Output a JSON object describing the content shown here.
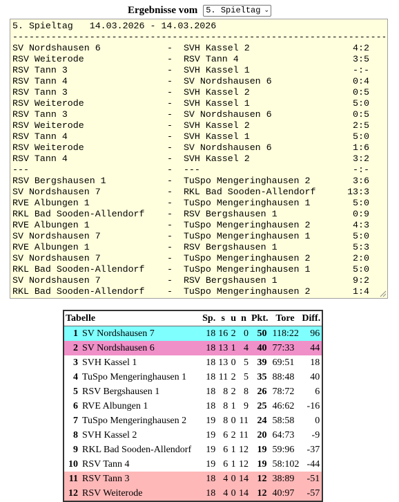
{
  "header": {
    "label": "Ergebnisse vom",
    "select_value": "5. Spieltag"
  },
  "results": {
    "title": "5. Spieltag   14.03.2026 - 14.03.2026",
    "separator": "------------------------------------------------------------------------",
    "matches": [
      {
        "home": "SV Nordshausen 6",
        "sep": "-",
        "away": "SVH Kassel 2",
        "score": "4:2"
      },
      {
        "home": "RSV Weiterode",
        "sep": "-",
        "away": "RSV Tann 4",
        "score": "3:5"
      },
      {
        "home": "RSV Tann 3",
        "sep": "-",
        "away": "SVH Kassel 1",
        "score": "-:-"
      },
      {
        "home": "RSV Tann 4",
        "sep": "-",
        "away": "SV Nordshausen 6",
        "score": "0:4"
      },
      {
        "home": "RSV Tann 3",
        "sep": "-",
        "away": "SVH Kassel 2",
        "score": "0:5"
      },
      {
        "home": "RSV Weiterode",
        "sep": "-",
        "away": "SVH Kassel 1",
        "score": "5:0"
      },
      {
        "home": "RSV Tann 3",
        "sep": "-",
        "away": "SV Nordshausen 6",
        "score": "0:5"
      },
      {
        "home": "RSV Weiterode",
        "sep": "-",
        "away": "SVH Kassel 2",
        "score": "2:5"
      },
      {
        "home": "RSV Tann 4",
        "sep": "-",
        "away": "SVH Kassel 1",
        "score": "5:0"
      },
      {
        "home": "RSV Weiterode",
        "sep": "-",
        "away": "SV Nordshausen 6",
        "score": "1:6"
      },
      {
        "home": "RSV Tann 4",
        "sep": "-",
        "away": "SVH Kassel 2",
        "score": "3:2"
      },
      {
        "home": "---",
        "sep": "-",
        "away": "---",
        "score": "-:-"
      },
      {
        "home": "RSV Bergshausen 1",
        "sep": "-",
        "away": "TuSpo Mengeringhausen 2",
        "score": "3:6"
      },
      {
        "home": "SV Nordshausen 7",
        "sep": "-",
        "away": "RKL Bad Sooden-Allendorf",
        "score": "13:3"
      },
      {
        "home": "RVE Albungen 1",
        "sep": "-",
        "away": "TuSpo Mengeringhausen 1",
        "score": "5:0"
      },
      {
        "home": "RKL Bad Sooden-Allendorf",
        "sep": "-",
        "away": "RSV Bergshausen 1",
        "score": "0:9"
      },
      {
        "home": "RVE Albungen 1",
        "sep": "-",
        "away": "TuSpo Mengeringhausen 2",
        "score": "4:3"
      },
      {
        "home": "SV Nordshausen 7",
        "sep": "-",
        "away": "TuSpo Mengeringhausen 1",
        "score": "5:0"
      },
      {
        "home": "RVE Albungen 1",
        "sep": "-",
        "away": "RSV Bergshausen 1",
        "score": "5:3"
      },
      {
        "home": "SV Nordshausen 7",
        "sep": "-",
        "away": "TuSpo Mengeringhausen 2",
        "score": "2:0"
      },
      {
        "home": "RKL Bad Sooden-Allendorf",
        "sep": "-",
        "away": "TuSpo Mengeringhausen 1",
        "score": "5:0"
      },
      {
        "home": "SV Nordshausen 7",
        "sep": "-",
        "away": "RSV Bergshausen 1",
        "score": "9:2"
      },
      {
        "home": "RKL Bad Sooden-Allendorf",
        "sep": "-",
        "away": "TuSpo Mengeringhausen 2",
        "score": "1:4"
      }
    ]
  },
  "table": {
    "headers": {
      "title": "Tabelle",
      "sp": "Sp.",
      "s": "s",
      "u": "u",
      "n": "n",
      "pkt": "Pkt.",
      "tore": "Tore",
      "diff": "Diff."
    },
    "rows": [
      {
        "rank": "1",
        "team": "SV Nordshausen 7",
        "sp": "18",
        "s": "16",
        "u": "2",
        "n": "0",
        "pkt": "50",
        "tore": "118:22",
        "diff": "96",
        "bg": "#80ffff"
      },
      {
        "rank": "2",
        "team": "SV Nordshausen 6",
        "sp": "18",
        "s": "13",
        "u": "1",
        "n": "4",
        "pkt": "40",
        "tore": "77:33",
        "diff": "44",
        "bg": "#f090c8"
      },
      {
        "rank": "3",
        "team": "SVH Kassel 1",
        "sp": "18",
        "s": "13",
        "u": "0",
        "n": "5",
        "pkt": "39",
        "tore": "69:51",
        "diff": "18",
        "bg": ""
      },
      {
        "rank": "4",
        "team": "TuSpo Mengeringhausen 1",
        "sp": "18",
        "s": "11",
        "u": "2",
        "n": "5",
        "pkt": "35",
        "tore": "88:48",
        "diff": "40",
        "bg": ""
      },
      {
        "rank": "5",
        "team": "RSV Bergshausen 1",
        "sp": "18",
        "s": "8",
        "u": "2",
        "n": "8",
        "pkt": "26",
        "tore": "78:72",
        "diff": "6",
        "bg": ""
      },
      {
        "rank": "6",
        "team": "RVE Albungen 1",
        "sp": "18",
        "s": "8",
        "u": "1",
        "n": "9",
        "pkt": "25",
        "tore": "46:62",
        "diff": "-16",
        "bg": ""
      },
      {
        "rank": "7",
        "team": "TuSpo Mengeringhausen 2",
        "sp": "19",
        "s": "8",
        "u": "0",
        "n": "11",
        "pkt": "24",
        "tore": "58:58",
        "diff": "0",
        "bg": ""
      },
      {
        "rank": "8",
        "team": "SVH Kassel 2",
        "sp": "19",
        "s": "6",
        "u": "2",
        "n": "11",
        "pkt": "20",
        "tore": "64:73",
        "diff": "-9",
        "bg": ""
      },
      {
        "rank": "9",
        "team": "RKL Bad Sooden-Allendorf",
        "sp": "19",
        "s": "6",
        "u": "1",
        "n": "12",
        "pkt": "19",
        "tore": "59:96",
        "diff": "-37",
        "bg": ""
      },
      {
        "rank": "10",
        "team": "RSV Tann 4",
        "sp": "19",
        "s": "6",
        "u": "1",
        "n": "12",
        "pkt": "19",
        "tore": "58:102",
        "diff": "-44",
        "bg": ""
      },
      {
        "rank": "11",
        "team": "RSV Tann 3",
        "sp": "18",
        "s": "4",
        "u": "0",
        "n": "14",
        "pkt": "12",
        "tore": "38:89",
        "diff": "-51",
        "bg": "#ffb8b8"
      },
      {
        "rank": "12",
        "team": "RSV Weiterode",
        "sp": "18",
        "s": "4",
        "u": "0",
        "n": "14",
        "pkt": "12",
        "tore": "40:97",
        "diff": "-57",
        "bg": "#ffb8b8"
      }
    ]
  }
}
